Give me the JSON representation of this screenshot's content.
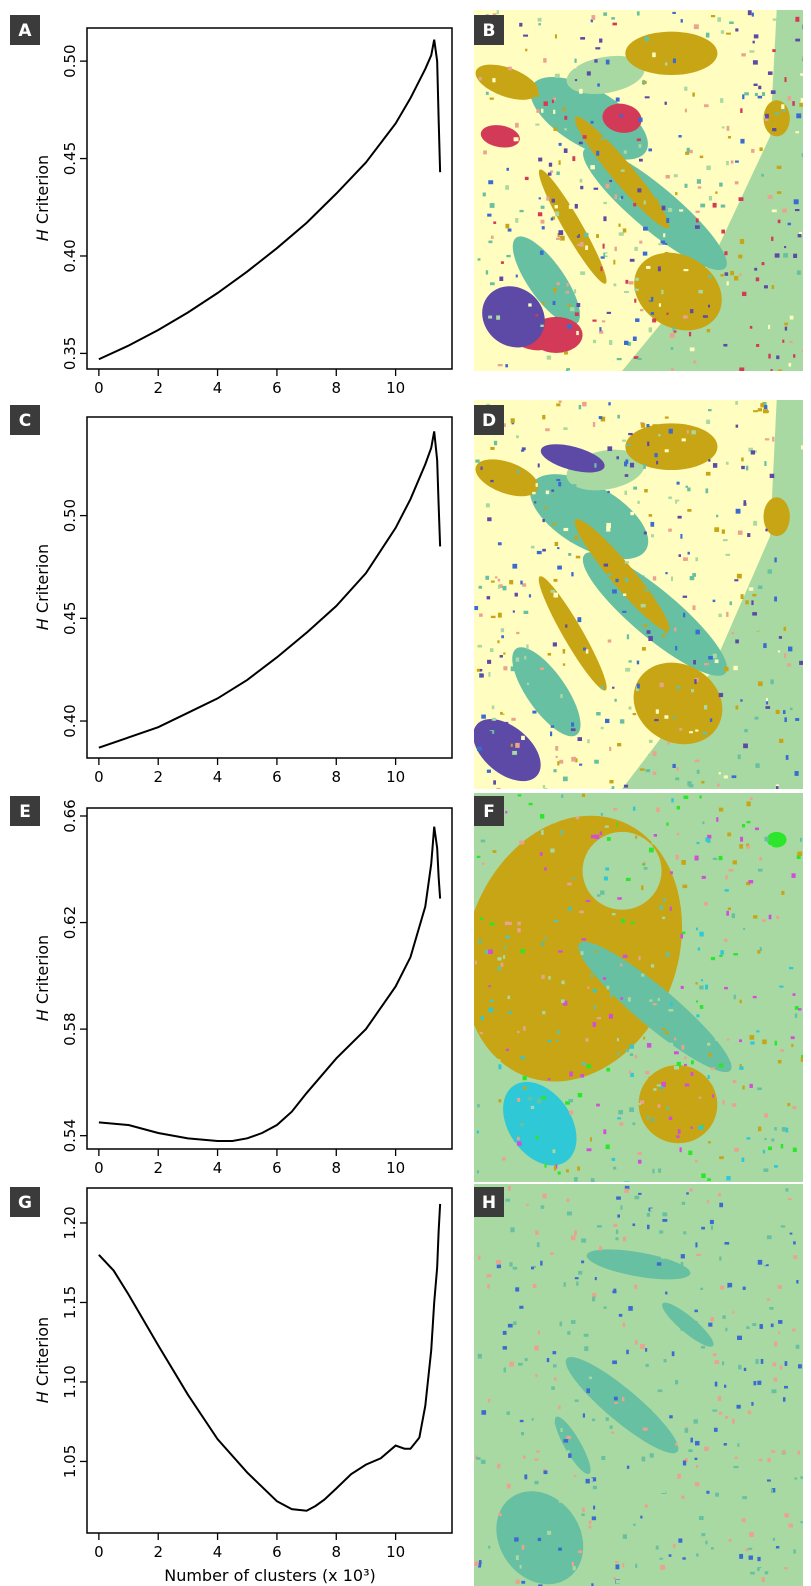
{
  "colors": {
    "background": "#a9d9a2",
    "teal": "#67c0a2",
    "cream": "#fffdc0",
    "olive": "#c7a514",
    "red": "#d33a57",
    "purple": "#5c4aa6",
    "cyan": "#2ec8d6",
    "blue": "#3a6bd1",
    "salmon": "#eaa38f",
    "magenta": "#d04ed9",
    "green": "#2ce62c",
    "label_box": "#3b3b3b"
  },
  "chart_data": [
    {
      "type": "line",
      "panel": "A",
      "ylabel_italic": "H",
      "ylabel": "Criterion",
      "xlabel": "",
      "xlim": [
        -0.4,
        11.9
      ],
      "ylim": [
        0.342,
        0.517
      ],
      "xticks": [
        0,
        2,
        4,
        6,
        8,
        10
      ],
      "yticks": [
        "0.35",
        "0.40",
        "0.45",
        "0.50"
      ],
      "x": [
        0,
        1,
        2,
        3,
        4,
        5,
        6,
        7,
        8,
        9,
        10,
        10.5,
        11,
        11.2,
        11.3,
        11.4,
        11.45,
        11.5
      ],
      "y": [
        0.347,
        0.354,
        0.362,
        0.371,
        0.381,
        0.392,
        0.404,
        0.417,
        0.432,
        0.448,
        0.468,
        0.481,
        0.496,
        0.503,
        0.511,
        0.5,
        0.47,
        0.443
      ]
    },
    {
      "type": "line",
      "panel": "C",
      "ylabel_italic": "H",
      "ylabel": "Criterion",
      "xlabel": "",
      "xlim": [
        -0.4,
        11.9
      ],
      "ylim": [
        0.382,
        0.548
      ],
      "xticks": [
        0,
        2,
        4,
        6,
        8,
        10
      ],
      "yticks": [
        "0.40",
        "0.45",
        "0.50"
      ],
      "x": [
        0,
        1,
        2,
        3,
        4,
        5,
        6,
        7,
        8,
        9,
        10,
        10.5,
        11,
        11.2,
        11.3,
        11.4,
        11.45,
        11.5
      ],
      "y": [
        0.387,
        0.392,
        0.397,
        0.404,
        0.411,
        0.42,
        0.431,
        0.443,
        0.456,
        0.472,
        0.494,
        0.508,
        0.525,
        0.533,
        0.541,
        0.527,
        0.505,
        0.485
      ]
    },
    {
      "type": "line",
      "panel": "E",
      "ylabel_italic": "H",
      "ylabel": "Criterion",
      "xlabel": "",
      "xlim": [
        -0.4,
        11.9
      ],
      "ylim": [
        0.535,
        0.663
      ],
      "xticks": [
        0,
        2,
        4,
        6,
        8,
        10
      ],
      "yticks": [
        "0.54",
        "0.58",
        "0.62",
        "0.66"
      ],
      "x": [
        0,
        1,
        2,
        3,
        4,
        4.5,
        5,
        5.5,
        6,
        6.5,
        7,
        8,
        9,
        10,
        10.5,
        11,
        11.2,
        11.3,
        11.4,
        11.45,
        11.5
      ],
      "y": [
        0.545,
        0.544,
        0.541,
        0.539,
        0.538,
        0.538,
        0.539,
        0.541,
        0.544,
        0.549,
        0.556,
        0.569,
        0.58,
        0.596,
        0.607,
        0.626,
        0.642,
        0.656,
        0.648,
        0.637,
        0.629
      ]
    },
    {
      "type": "line",
      "panel": "G",
      "ylabel_italic": "H",
      "ylabel": "Criterion",
      "xlabel": "Number of clusters (x 10³)",
      "xlim": [
        -0.4,
        11.9
      ],
      "ylim": [
        1.005,
        1.222
      ],
      "xticks": [
        0,
        2,
        4,
        6,
        8,
        10
      ],
      "yticks": [
        "1.05",
        "1.10",
        "1.15",
        "1.20"
      ],
      "x": [
        0,
        0.5,
        1,
        2,
        3,
        4,
        5,
        6,
        6.5,
        7,
        7.3,
        7.6,
        8,
        8.5,
        9,
        9.5,
        10,
        10.3,
        10.5,
        10.8,
        11,
        11.2,
        11.3,
        11.4,
        11.45,
        11.5
      ],
      "y": [
        1.18,
        1.17,
        1.155,
        1.123,
        1.092,
        1.064,
        1.043,
        1.025,
        1.02,
        1.019,
        1.022,
        1.026,
        1.033,
        1.042,
        1.048,
        1.052,
        1.06,
        1.058,
        1.058,
        1.065,
        1.085,
        1.12,
        1.15,
        1.172,
        1.195,
        1.212
      ]
    }
  ],
  "maps": [
    {
      "panel": "B",
      "palette": [
        "background",
        "teal",
        "cream",
        "olive",
        "red",
        "purple",
        "blue",
        "salmon"
      ]
    },
    {
      "panel": "D",
      "palette": [
        "background",
        "teal",
        "cream",
        "olive",
        "purple",
        "blue",
        "salmon"
      ]
    },
    {
      "panel": "F",
      "palette": [
        "background",
        "teal",
        "olive",
        "cyan",
        "magenta",
        "green",
        "salmon"
      ]
    },
    {
      "panel": "H",
      "palette": [
        "background",
        "teal",
        "blue",
        "salmon"
      ]
    }
  ]
}
